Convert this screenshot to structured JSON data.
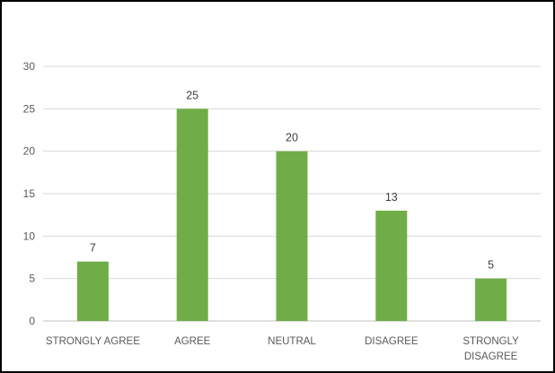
{
  "chart_data": {
    "type": "bar",
    "title": "",
    "xlabel": "",
    "ylabel": "",
    "categories": [
      [
        "STRONGLY AGREE"
      ],
      [
        "AGREE"
      ],
      [
        "NEUTRAL"
      ],
      [
        "DISAGREE"
      ],
      [
        "STRONGLY",
        "DISAGREE"
      ]
    ],
    "values": [
      7,
      25,
      20,
      13,
      5
    ],
    "ylim": [
      0,
      30
    ],
    "yticks": [
      "0",
      "5",
      "10",
      "15",
      "20",
      "25",
      "30"
    ],
    "grid": true,
    "legend": "none",
    "colors": {
      "bar": "#70AD47",
      "grid": "#D9D9D9",
      "axis": "#BFBFBF",
      "border": "#000000"
    }
  }
}
